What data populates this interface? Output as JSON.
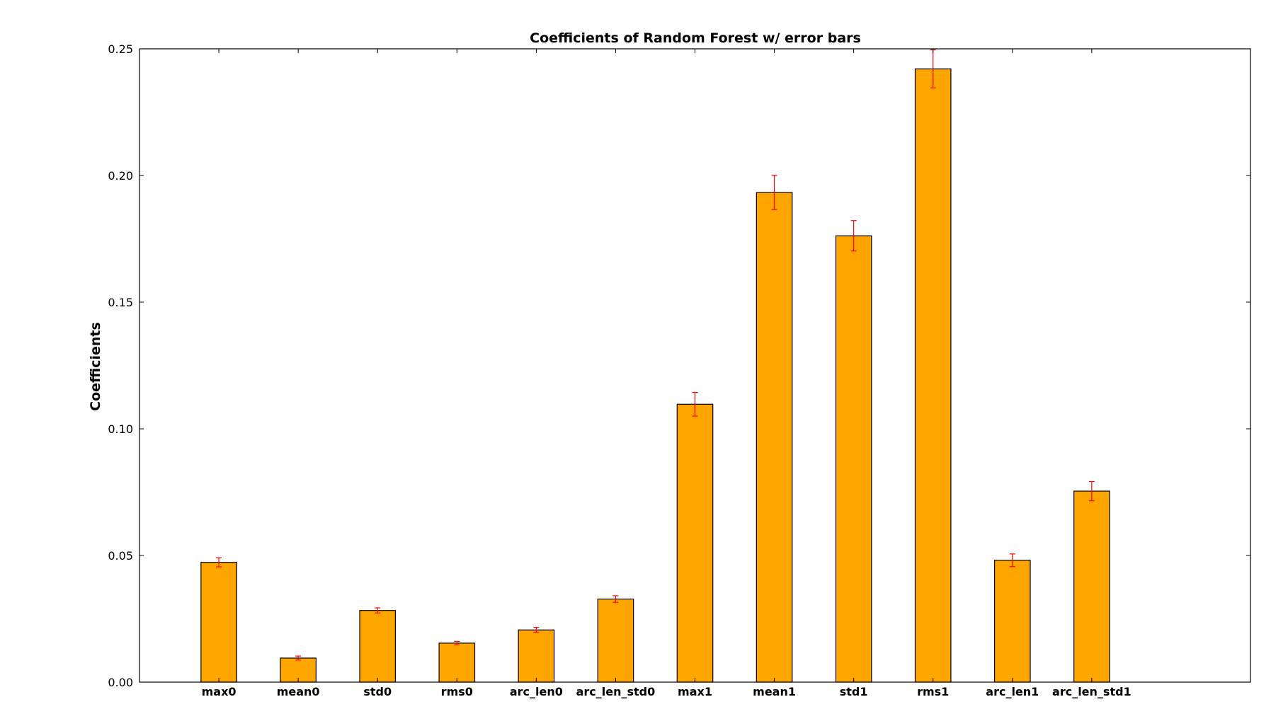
{
  "chart_data": {
    "type": "bar",
    "title": "Coefficients of Random Forest w/ error bars",
    "xlabel": "",
    "ylabel": "Coefficients",
    "categories": [
      "max0",
      "mean0",
      "std0",
      "rms0",
      "arc_len0",
      "arc_len_std0",
      "max1",
      "mean1",
      "std1",
      "rms1",
      "arc_len1",
      "arc_len_std1"
    ],
    "values": [
      0.0473,
      0.0095,
      0.0283,
      0.0154,
      0.0206,
      0.0328,
      0.1097,
      0.1933,
      0.1762,
      0.2421,
      0.0481,
      0.0754
    ],
    "errors": [
      0.0018,
      0.0008,
      0.001,
      0.0007,
      0.001,
      0.0013,
      0.0047,
      0.0068,
      0.006,
      0.0075,
      0.0025,
      0.0038
    ],
    "yticks": [
      "0.00",
      "0.05",
      "0.10",
      "0.15",
      "0.20",
      "0.25"
    ],
    "ytick_values": [
      0,
      0.05,
      0.1,
      0.15,
      0.2,
      0.25
    ],
    "ylim": [
      0,
      0.25
    ],
    "xlim": [
      -1,
      13
    ],
    "grid": false,
    "bar_color": "#ffa500",
    "bar_edge_color": "#000000",
    "error_color": "#ff0000"
  }
}
